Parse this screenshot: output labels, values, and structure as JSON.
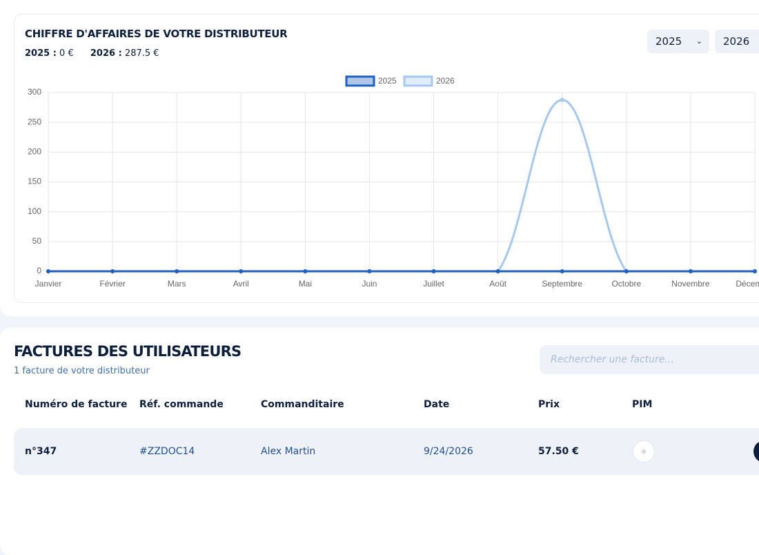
{
  "chart_data": {
    "type": "line",
    "title": "CHIFFRE D'AFFAIRES DE VOTRE DISTRIBUTEUR",
    "categories": [
      "Janvier",
      "Février",
      "Mars",
      "Avril",
      "Mai",
      "Juin",
      "Juillet",
      "Août",
      "Septembre",
      "Octobre",
      "Novembre",
      "Décembre"
    ],
    "series": [
      {
        "name": "2025",
        "color": "#1f5fbf",
        "values": [
          0,
          0,
          0,
          0,
          0,
          0,
          0,
          0,
          0,
          0,
          0,
          0
        ]
      },
      {
        "name": "2026",
        "color": "#a6c8f0",
        "values": [
          0,
          0,
          0,
          0,
          0,
          0,
          0,
          0,
          287.5,
          0,
          0,
          0
        ]
      }
    ],
    "ylim": [
      0,
      300
    ],
    "yticks": [
      0,
      50,
      100,
      150,
      200,
      250,
      300
    ],
    "grid": true,
    "legend": "top"
  },
  "summary": [
    {
      "label": "2025 :",
      "value": "0 €"
    },
    {
      "label": "2026 :",
      "value": "287.5 €"
    }
  ],
  "year_selects": [
    "2025",
    "2026"
  ],
  "invoices": {
    "title": "FACTURES DES UTILISATEURS",
    "subtitle": "1 facture de votre distributeur",
    "search_placeholder": "Rechercher une facture...",
    "columns": [
      "Numéro de facture",
      "Réf. commande",
      "Commanditaire",
      "Date",
      "Prix",
      "PIM"
    ],
    "rows": [
      [
        "n°347",
        "#ZZDOC14",
        "Alex Martin",
        "9/24/2026",
        "57.50 €"
      ]
    ]
  }
}
